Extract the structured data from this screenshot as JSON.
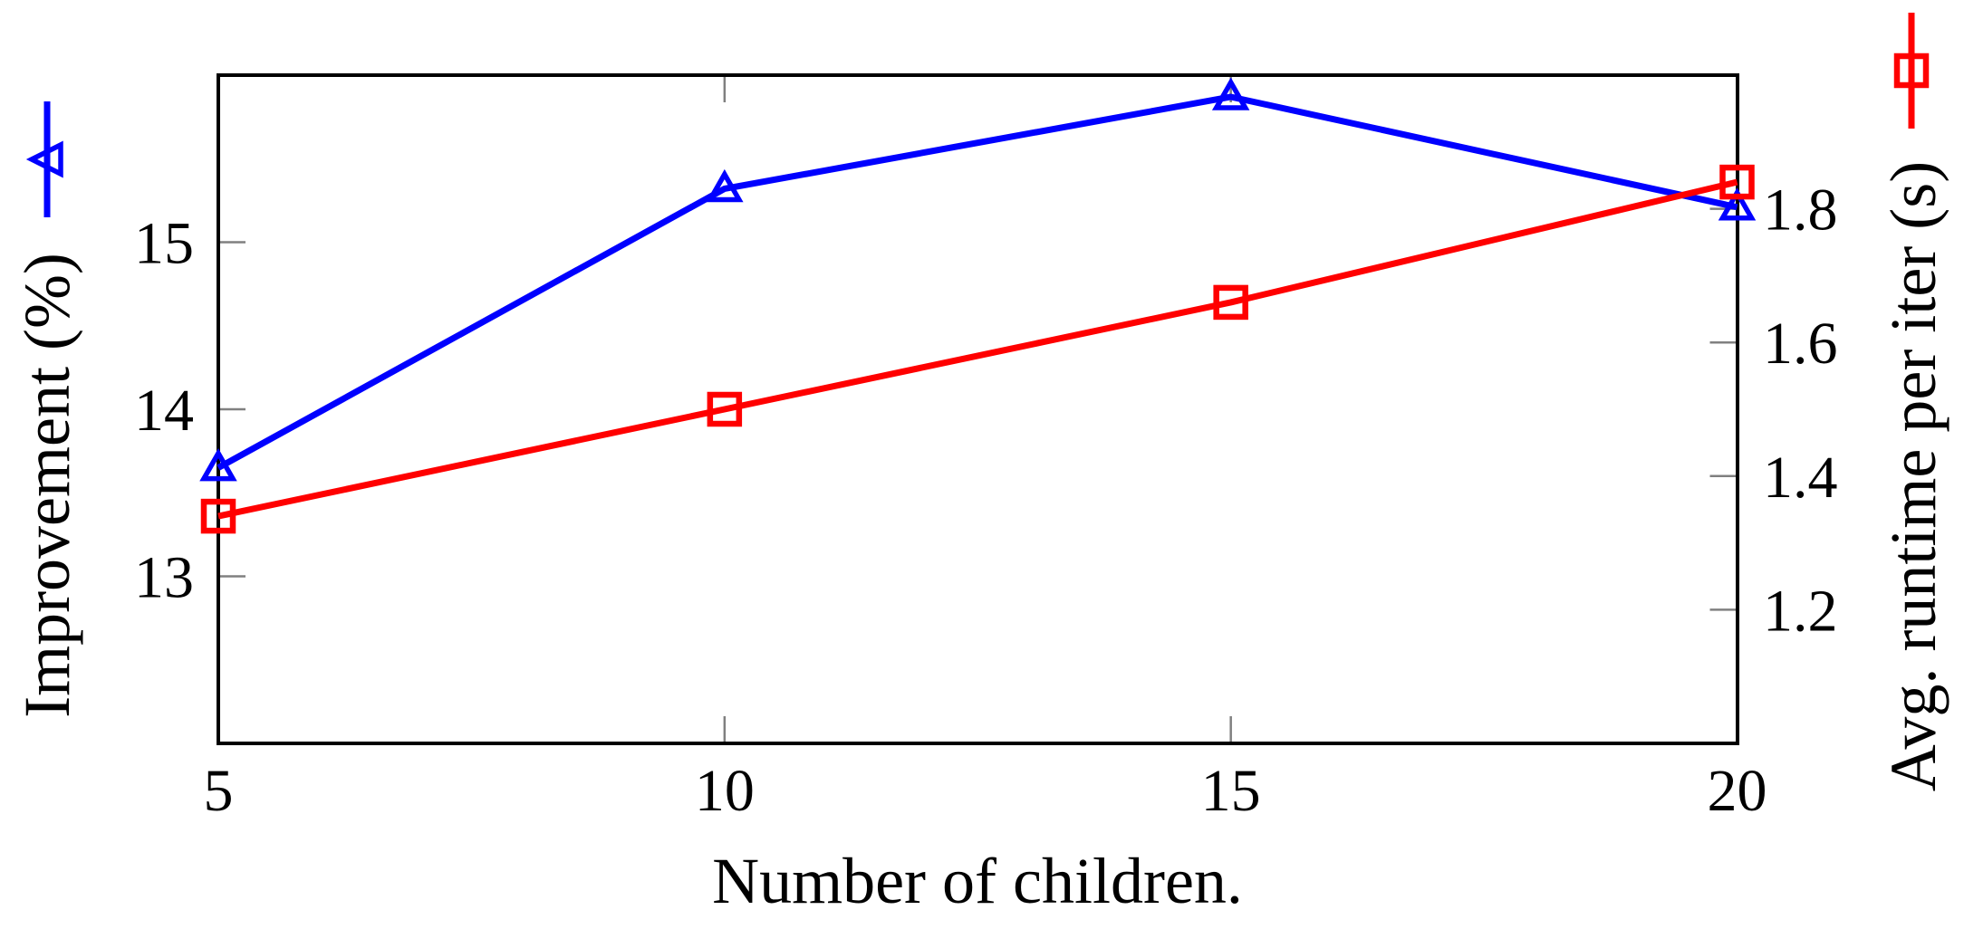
{
  "figure": {
    "background_color": "#ffffff",
    "axis_line_color": "#000000",
    "tick_mark_color": "#808080"
  },
  "chart_data": {
    "type": "line",
    "x": [
      5,
      10,
      15,
      20
    ],
    "x_tick_labels": [
      "5",
      "10",
      "15",
      "20"
    ],
    "xlim": [
      5,
      20
    ],
    "xlabel": "Number of children.",
    "grid": false,
    "legend_position": "at-axis-label-ends",
    "left_axis": {
      "label": "Improvement (%)",
      "tick_labels": [
        "13",
        "14",
        "15"
      ],
      "lim": [
        12,
        16
      ]
    },
    "right_axis": {
      "label": "Avg. runtime per iter (s)",
      "tick_labels": [
        "1.2",
        "1.4",
        "1.6",
        "1.8"
      ],
      "lim": [
        1.0,
        2.0
      ]
    },
    "series": [
      {
        "name": "Improvement (%)",
        "axis": "left",
        "color": "#0000ff",
        "marker": "triangle",
        "values": [
          13.65,
          15.32,
          15.87,
          15.21
        ]
      },
      {
        "name": "Avg. runtime per iter (s)",
        "axis": "right",
        "color": "#ff0000",
        "marker": "square",
        "values": [
          1.34,
          1.5,
          1.66,
          1.84
        ]
      }
    ]
  }
}
